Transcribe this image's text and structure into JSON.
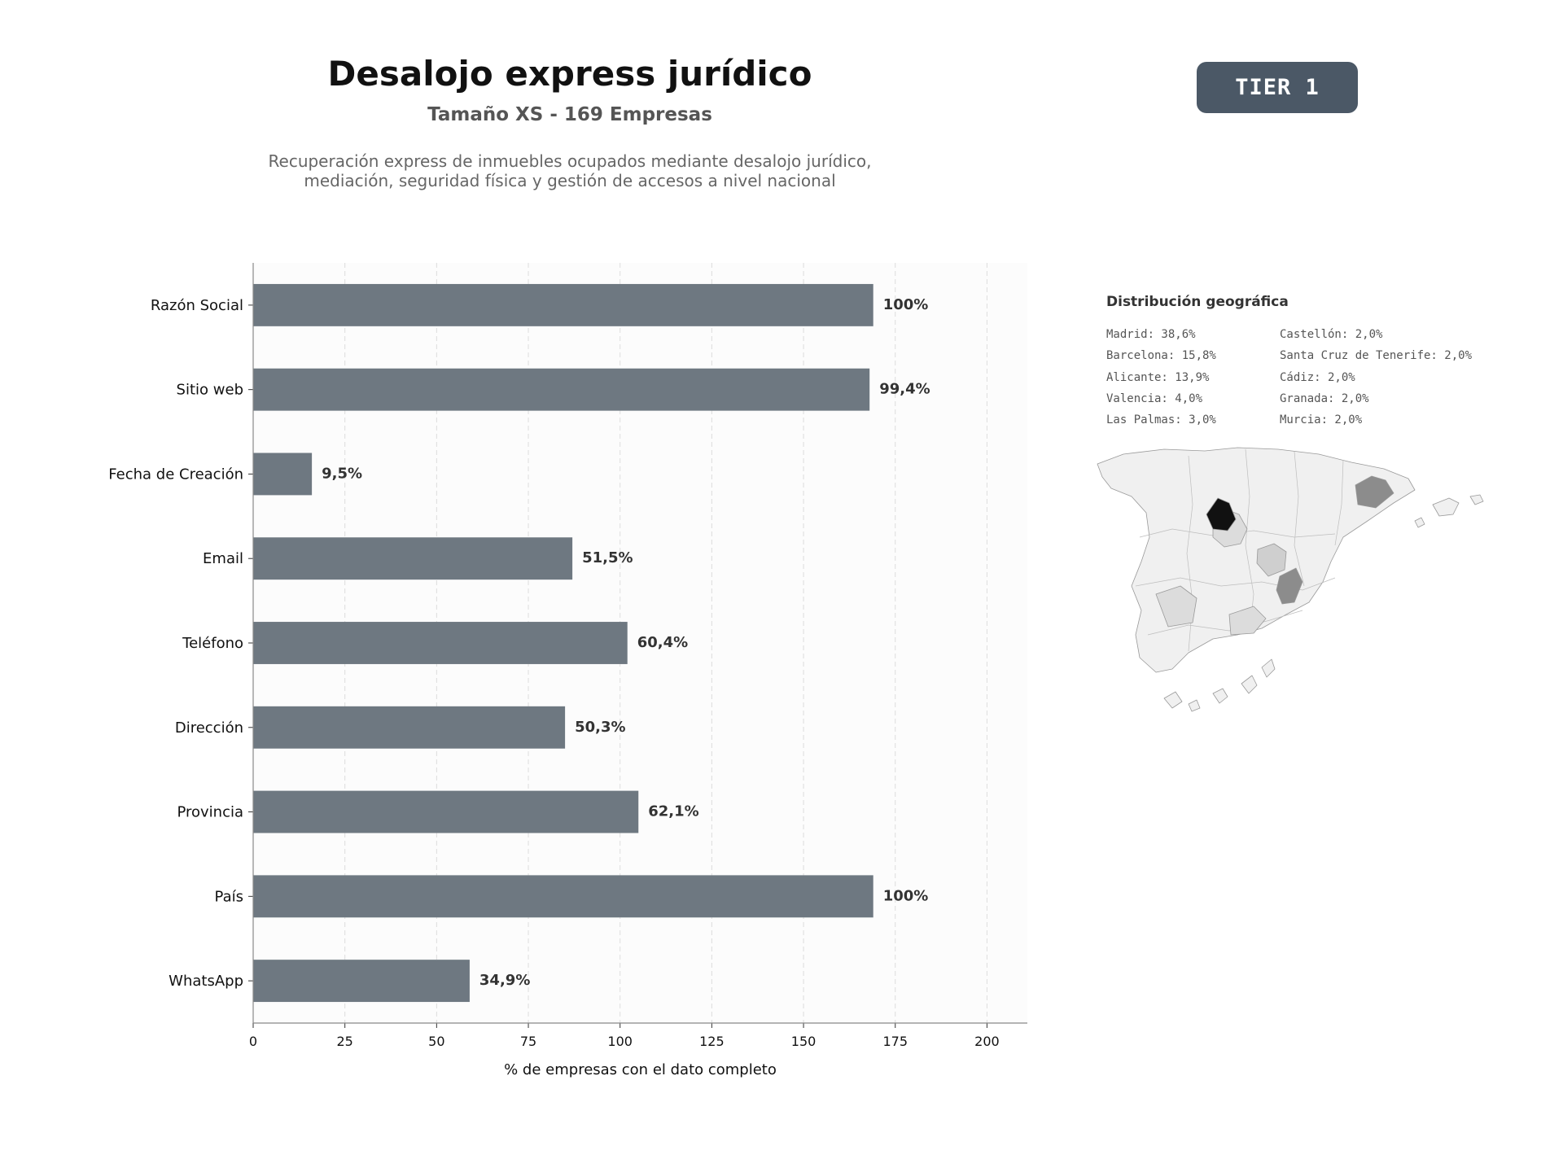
{
  "header": {
    "title": "Desalojo express jurídico",
    "subtitle": "Tamaño XS - 169 Empresas",
    "description_line1": "Recuperación express de inmuebles ocupados mediante desalojo jurídico,",
    "description_line2": "mediación, seguridad física y gestión de accesos a nivel nacional",
    "badge": "TIER 1"
  },
  "chart_data": {
    "type": "bar",
    "orientation": "horizontal",
    "categories": [
      "Razón Social",
      "Sitio web",
      "Fecha de Creación",
      "Email",
      "Teléfono",
      "Dirección",
      "Provincia",
      "País",
      "WhatsApp"
    ],
    "values": [
      169,
      168,
      16,
      87,
      102,
      85,
      105,
      169,
      59
    ],
    "value_labels": [
      "100%",
      "99,4%",
      "9,5%",
      "51,5%",
      "60,4%",
      "50,3%",
      "62,1%",
      "100%",
      "34,9%"
    ],
    "xlabel": "% de empresas con el dato completo",
    "xlim": [
      0,
      211
    ],
    "xticks": [
      0,
      25,
      50,
      75,
      100,
      125,
      150,
      175,
      200
    ],
    "grid": true,
    "bar_color": "#6e7881",
    "plot_bg": "#fcfcfc"
  },
  "geo": {
    "title": "Distribución geográfica",
    "col1": [
      "Madrid: 38,6%",
      "Barcelona: 15,8%",
      "Alicante: 13,9%",
      "Valencia: 4,0%",
      "Las Palmas: 3,0%"
    ],
    "col2": [
      "Castellón: 2,0%",
      "Santa Cruz de Tenerife: 2,0%",
      "Cádiz: 2,0%",
      "Granada: 2,0%",
      "Murcia: 2,0%"
    ],
    "map_colors": {
      "base": "#f0f0f0",
      "border": "#999999",
      "madrid": "#111111",
      "barcelona": "#8c8c8c",
      "alicante": "#8c8c8c",
      "valencia": "#cfcfcf",
      "other": "#dcdcdc"
    }
  }
}
